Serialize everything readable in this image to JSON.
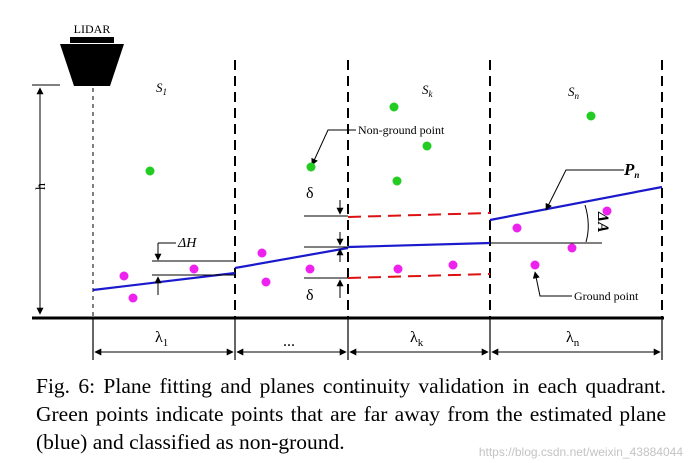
{
  "figure": {
    "lidar_label": "LIDAR",
    "height_label": "h",
    "segment_labels": [
      {
        "base": "S",
        "sub": "1"
      },
      {
        "base": "S",
        "sub": "k"
      },
      {
        "base": "S",
        "sub": "n"
      }
    ],
    "non_ground_label": "Non-ground point",
    "ground_label": "Ground point",
    "delta_h_label": "ΔH",
    "delta_top": "δ",
    "delta_bottom": "δ",
    "plane_label": "P",
    "plane_sub": "n",
    "angle_label": "ΔA",
    "lambda_labels": [
      {
        "base": "λ",
        "sub": "1"
      },
      {
        "base": "...",
        "sub": ""
      },
      {
        "base": "λ",
        "sub": "k"
      },
      {
        "base": "λ",
        "sub": "n"
      }
    ],
    "colors": {
      "plane": "#1a1acc",
      "threshold": "#dd1111",
      "non_ground_point": "#22cc22",
      "ground_point": "#ee22ee"
    }
  },
  "caption": "Fig. 6: Plane fitting and planes continuity validation in each quadrant. Green points indicate points that are far away from the estimated plane (blue) and classified as non-ground.",
  "watermark": "https://blog.csdn.net/weixin_43884044"
}
